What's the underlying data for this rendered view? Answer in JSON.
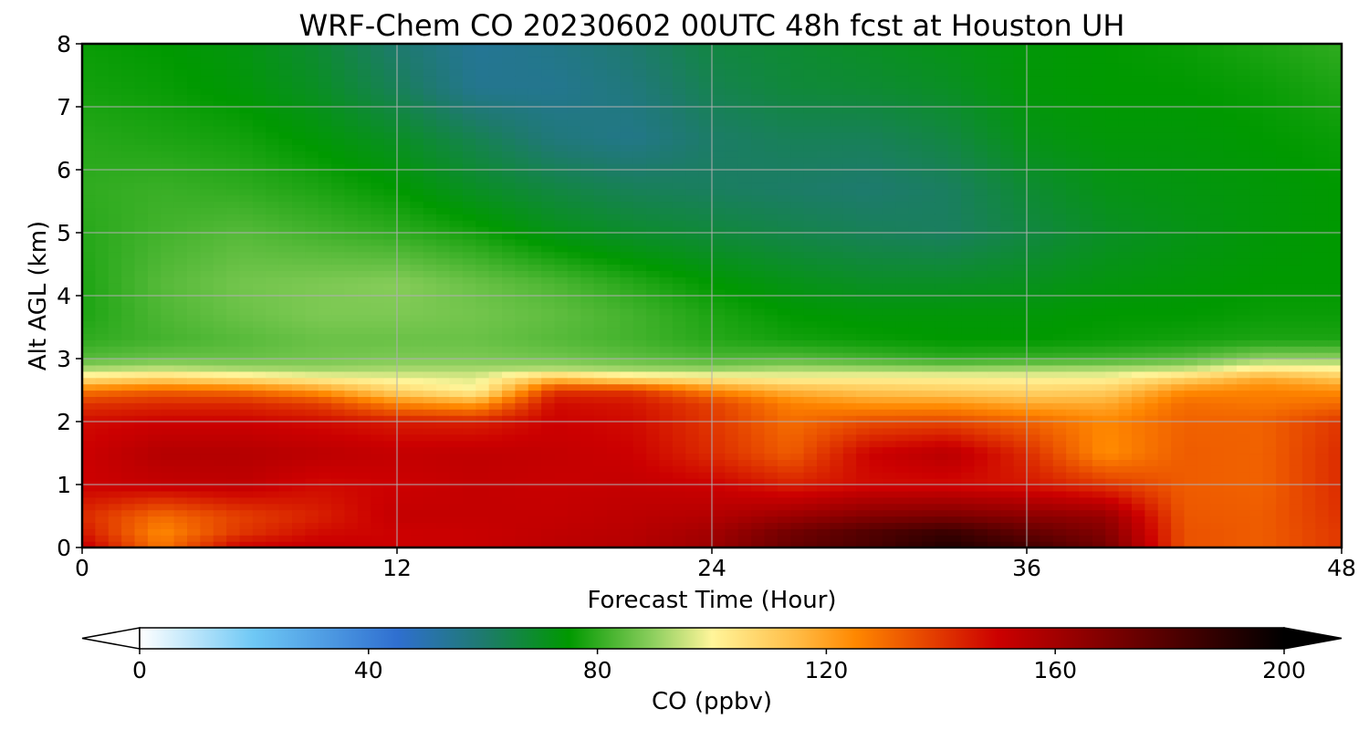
{
  "chart_data": {
    "type": "heatmap",
    "title": "WRF-Chem CO  20230602 00UTC 48h fcst at Houston UH",
    "xlabel": "Forecast Time (Hour)",
    "ylabel": "Alt AGL (km)",
    "xlim": [
      0,
      48
    ],
    "ylim": [
      0,
      8
    ],
    "xticks": [
      0,
      12,
      24,
      36,
      48
    ],
    "yticks": [
      0,
      1,
      2,
      3,
      4,
      5,
      6,
      7,
      8
    ],
    "grid": true,
    "colorbar": {
      "label": "CO  (ppbv)",
      "range": [
        0,
        200
      ],
      "ticks": [
        0,
        40,
        80,
        120,
        160,
        200
      ],
      "extend": "both",
      "orientation": "horizontal",
      "color_stops": [
        {
          "value": 0,
          "color": "#ffffff"
        },
        {
          "value": 20,
          "color": "#6ec8f5"
        },
        {
          "value": 45,
          "color": "#2f6fd0"
        },
        {
          "value": 60,
          "color": "#1e7a6e"
        },
        {
          "value": 75,
          "color": "#009900"
        },
        {
          "value": 90,
          "color": "#90d060"
        },
        {
          "value": 100,
          "color": "#fff59a"
        },
        {
          "value": 115,
          "color": "#ffbb44"
        },
        {
          "value": 125,
          "color": "#ff8800"
        },
        {
          "value": 150,
          "color": "#cc0000"
        },
        {
          "value": 175,
          "color": "#660000"
        },
        {
          "value": 200,
          "color": "#000000"
        }
      ]
    },
    "altitude_km": [
      0,
      0.25,
      0.5,
      1.0,
      1.5,
      2.0,
      2.3,
      2.5,
      2.7,
      2.85,
      3.0,
      3.3,
      3.7,
      4.2,
      5.0,
      5.7,
      6.5,
      7.3,
      8.0
    ],
    "time_hour": [
      0,
      3,
      6,
      9,
      12,
      15,
      18,
      21,
      24,
      27,
      30,
      33,
      36,
      39,
      42,
      45,
      48
    ],
    "co_ppbv": [
      [
        152,
        128,
        150,
        152,
        150,
        151,
        154,
        156,
        162,
        175,
        182,
        192,
        184,
        172,
        135,
        133,
        140
      ],
      [
        146,
        125,
        140,
        148,
        150,
        151,
        153,
        155,
        160,
        172,
        180,
        186,
        176,
        168,
        135,
        133,
        140
      ],
      [
        142,
        130,
        138,
        144,
        152,
        152,
        152,
        154,
        156,
        162,
        168,
        170,
        166,
        163,
        134,
        133,
        141
      ],
      [
        150,
        152,
        153,
        148,
        150,
        152,
        151,
        152,
        150,
        144,
        148,
        148,
        146,
        140,
        133,
        132,
        142
      ],
      [
        150,
        156,
        156,
        154,
        152,
        153,
        152,
        150,
        142,
        133,
        150,
        155,
        142,
        124,
        133,
        132,
        142
      ],
      [
        148,
        150,
        150,
        148,
        145,
        144,
        150,
        148,
        140,
        130,
        136,
        137,
        132,
        125,
        132,
        132,
        140
      ],
      [
        140,
        142,
        142,
        138,
        125,
        120,
        148,
        146,
        138,
        126,
        122,
        122,
        118,
        118,
        130,
        128,
        130
      ],
      [
        128,
        132,
        130,
        122,
        108,
        100,
        140,
        140,
        125,
        116,
        112,
        110,
        108,
        110,
        124,
        126,
        124
      ],
      [
        104,
        108,
        104,
        100,
        98,
        97,
        112,
        104,
        102,
        100,
        101,
        101,
        100,
        100,
        108,
        118,
        112
      ],
      [
        92,
        94,
        92,
        91,
        92,
        92,
        93,
        91,
        90,
        92,
        91,
        90,
        91,
        92,
        94,
        102,
        100
      ],
      [
        84,
        86,
        86,
        87,
        88,
        88,
        87,
        85,
        83,
        84,
        82,
        80,
        81,
        82,
        84,
        90,
        90
      ],
      [
        80,
        82,
        84,
        86,
        86,
        86,
        84,
        82,
        79,
        77,
        76,
        75,
        75,
        76,
        77,
        78,
        78
      ],
      [
        78,
        83,
        86,
        88,
        88,
        87,
        85,
        82,
        78,
        75,
        74,
        74,
        74,
        75,
        75,
        76,
        76
      ],
      [
        78,
        84,
        87,
        88,
        89,
        86,
        83,
        79,
        75,
        72,
        70,
        70,
        71,
        73,
        74,
        75,
        75
      ],
      [
        79,
        82,
        84,
        82,
        80,
        77,
        72,
        69,
        67,
        65,
        63,
        62,
        66,
        70,
        72,
        74,
        75
      ],
      [
        80,
        81,
        80,
        78,
        75,
        70,
        66,
        63,
        62,
        61,
        60,
        62,
        68,
        72,
        73,
        74,
        75
      ],
      [
        79,
        78,
        77,
        74,
        70,
        64,
        58,
        56,
        61,
        63,
        63,
        66,
        72,
        74,
        74,
        75,
        76
      ],
      [
        77,
        76,
        74,
        70,
        63,
        55,
        55,
        58,
        64,
        67,
        68,
        70,
        74,
        75,
        75,
        76,
        78
      ],
      [
        76,
        75,
        73,
        68,
        60,
        54,
        56,
        60,
        66,
        68,
        70,
        72,
        74,
        75,
        76,
        78,
        80
      ]
    ]
  }
}
